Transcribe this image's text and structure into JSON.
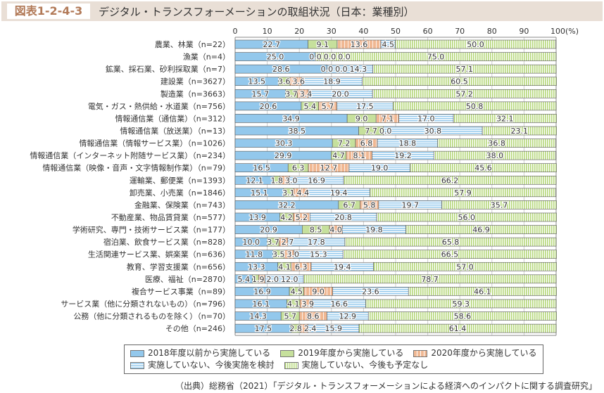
{
  "header": {
    "figure_label": "図表1-2-4-3",
    "title": "デジタル・トランスフォーメーションの取組状況（日本：業種別）"
  },
  "source": "（出典）総務省（2021）「デジタル・トランスフォーメーションによる経済へのインパクトに関する調査研究」",
  "chart_data": {
    "type": "bar",
    "orientation": "horizontal",
    "stacked": true,
    "xlim": [
      0,
      100
    ],
    "x_ticks": [
      "0",
      "10",
      "20",
      "30",
      "40",
      "50",
      "60",
      "70",
      "80",
      "90",
      "100(%)"
    ],
    "grid": true,
    "legend_placement": "bottom",
    "categories": [
      "農業、林業（n=22）",
      "漁業（n=4）",
      "鉱業、採石業、砂利採取業（n=7）",
      "建設業（n=3627）",
      "製造業（n=3663）",
      "電気・ガス・熱供給・水道業（n=756）",
      "情報通信業（通信業）（n=312）",
      "情報通信業（放送業）（n=13）",
      "情報通信業（情報サービス業）（n=1026）",
      "情報通信業（インターネット附随サービス業）（n=234）",
      "情報通信業（映像・音声・文字情報制作業）（n=79）",
      "運輸業、郵便業（n=1393）",
      "卸売業、小売業（n=1846）",
      "金融業、保険業（n=743）",
      "不動産業、物品賃貸業（n=577）",
      "学術研究、専門・技術サービス業（n=177）",
      "宿泊業、飲食サービス業（n=828）",
      "生活関連サービス業、娯楽業（n=636）",
      "教育、学習支援業（n=656）",
      "医療、福祉（n=2870）",
      "複合サービス事業（n=89）",
      "サービス業（他に分類されないもの）（n=796）",
      "公務（他に分類されるものを除く）（n=70）",
      "その他（n=246）"
    ],
    "series": [
      {
        "name": "2018年度以前から実施している",
        "color": "#93c8ec",
        "pattern": "solid",
        "values": [
          22.7,
          25.0,
          28.6,
          13.5,
          15.7,
          20.6,
          34.9,
          38.5,
          30.3,
          29.9,
          16.5,
          12.1,
          15.1,
          32.2,
          13.9,
          20.9,
          10.0,
          11.8,
          13.3,
          5.4,
          16.9,
          16.1,
          14.3,
          17.5
        ]
      },
      {
        "name": "2019年度から実施している",
        "color": "#c6e09c",
        "pattern": "solid",
        "values": [
          9.1,
          0.0,
          0.0,
          3.6,
          3.7,
          5.4,
          9.0,
          7.7,
          7.2,
          4.7,
          6.3,
          1.8,
          3.1,
          6.7,
          4.2,
          8.5,
          3.7,
          3.5,
          4.1,
          1.9,
          4.5,
          4.1,
          5.7,
          2.8
        ]
      },
      {
        "name": "2020年度から実施している",
        "color": "#f0b893",
        "pattern": "vertical-grid",
        "values": [
          13.6,
          0.0,
          0.0,
          3.6,
          3.4,
          5.7,
          7.1,
          0.0,
          6.8,
          8.1,
          12.7,
          3.0,
          4.4,
          5.8,
          5.2,
          4.0,
          2.7,
          3.0,
          6.3,
          2.0,
          9.0,
          3.9,
          8.6,
          2.4
        ]
      },
      {
        "name": "実施していない、今後実施を検討",
        "color": "#93c8ec",
        "pattern": "horizontal-stripes",
        "values": [
          4.5,
          0.0,
          14.3,
          18.9,
          20.0,
          17.5,
          17.0,
          30.8,
          18.8,
          19.2,
          19.0,
          16.9,
          19.4,
          19.7,
          20.8,
          19.8,
          17.8,
          15.3,
          19.4,
          12.0,
          23.6,
          16.6,
          12.9,
          15.9
        ]
      },
      {
        "name": "実施していない、今後も予定なし",
        "color": "#b5d77a",
        "pattern": "vertical-stripes",
        "values": [
          50.0,
          75.0,
          57.1,
          60.5,
          57.2,
          50.8,
          32.1,
          23.1,
          36.8,
          38.0,
          45.6,
          66.2,
          57.9,
          35.7,
          56.0,
          46.9,
          65.8,
          66.5,
          57.0,
          78.7,
          46.1,
          59.3,
          58.6,
          61.4
        ]
      }
    ]
  }
}
